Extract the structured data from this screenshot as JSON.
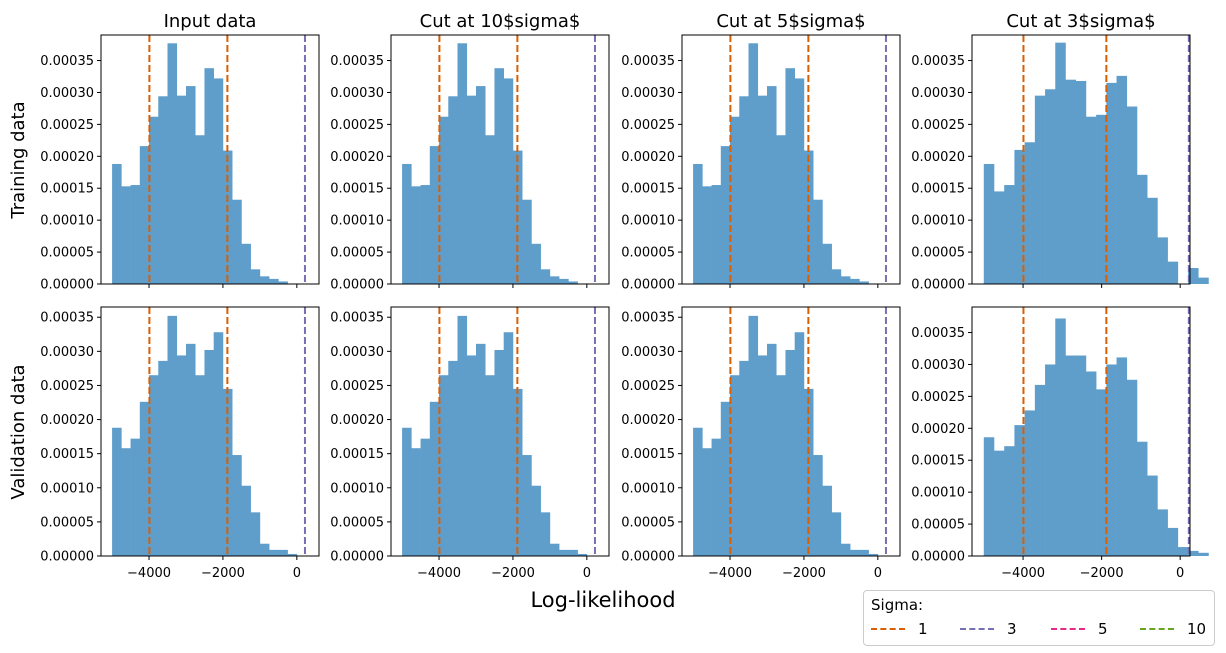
{
  "figure": {
    "xlabel": "Log-likelihood",
    "row_labels": [
      "Training data",
      "Validation data"
    ],
    "column_titles": [
      "Input data",
      "Cut at 10$sigma$",
      "Cut at 5$sigma$",
      "Cut at 3$sigma$"
    ]
  },
  "legend": {
    "title": "Sigma:",
    "items": [
      {
        "label": "1",
        "color": "#d95f02"
      },
      {
        "label": "3",
        "color": "#7570b3"
      },
      {
        "label": "5",
        "color": "#e7298a"
      },
      {
        "label": "10",
        "color": "#66a61e"
      }
    ]
  },
  "colors": {
    "bars": "#5f9ecb",
    "sigma1": "#d95f02",
    "sigma3": "#7570b3"
  },
  "chart_data": [
    {
      "type": "bar",
      "row": "Training data",
      "title": "Input data",
      "xlim": [
        -5300,
        600
      ],
      "ylim": [
        0,
        0.00039
      ],
      "yticks": [
        0,
        5e-05,
        0.0001,
        0.00015,
        0.0002,
        0.00025,
        0.0003,
        0.00035
      ],
      "xticks": [
        -4000,
        -2000,
        0
      ],
      "bin_start": -5000,
      "bin_width": 250,
      "values": [
        0.000188,
        0.000153,
        0.000155,
        0.000216,
        0.000262,
        0.000294,
        0.000377,
        0.000295,
        0.00031,
        0.000233,
        0.000338,
        0.000322,
        0.000209,
        0.000132,
        6.3e-05,
        2.3e-05,
        1.2e-05,
        8e-06,
        4e-06
      ],
      "vlines": [
        {
          "x": -3990,
          "sigma": "1"
        },
        {
          "x": -1880,
          "sigma": "1"
        },
        {
          "x": 220,
          "sigma": "3"
        }
      ]
    },
    {
      "type": "bar",
      "row": "Training data",
      "title": "Cut at 10$sigma$",
      "xlim": [
        -5300,
        600
      ],
      "ylim": [
        0,
        0.00039
      ],
      "yticks": [
        0,
        5e-05,
        0.0001,
        0.00015,
        0.0002,
        0.00025,
        0.0003,
        0.00035
      ],
      "xticks": [
        -4000,
        -2000,
        0
      ],
      "bin_start": -5000,
      "bin_width": 250,
      "values": [
        0.000188,
        0.000153,
        0.000155,
        0.000216,
        0.000262,
        0.000294,
        0.000377,
        0.000295,
        0.00031,
        0.000233,
        0.000338,
        0.000322,
        0.000209,
        0.000132,
        6.3e-05,
        2.3e-05,
        1.2e-05,
        8e-06,
        4e-06
      ],
      "vlines": [
        {
          "x": -3990,
          "sigma": "1"
        },
        {
          "x": -1880,
          "sigma": "1"
        },
        {
          "x": 220,
          "sigma": "3"
        }
      ]
    },
    {
      "type": "bar",
      "row": "Training data",
      "title": "Cut at 5$sigma$",
      "xlim": [
        -5300,
        600
      ],
      "ylim": [
        0,
        0.00039
      ],
      "yticks": [
        0,
        5e-05,
        0.0001,
        0.00015,
        0.0002,
        0.00025,
        0.0003,
        0.00035
      ],
      "xticks": [
        -4000,
        -2000,
        0
      ],
      "bin_start": -5000,
      "bin_width": 250,
      "values": [
        0.000188,
        0.000153,
        0.000155,
        0.000216,
        0.000262,
        0.000294,
        0.000377,
        0.000295,
        0.00031,
        0.000233,
        0.000338,
        0.000322,
        0.000209,
        0.000132,
        6.3e-05,
        2.3e-05,
        1.2e-05,
        8e-06,
        4e-06
      ],
      "vlines": [
        {
          "x": -3990,
          "sigma": "1"
        },
        {
          "x": -1880,
          "sigma": "1"
        },
        {
          "x": 220,
          "sigma": "3"
        }
      ]
    },
    {
      "type": "bar",
      "row": "Training data",
      "title": "Cut at 3$sigma$",
      "xlim": [
        -5300,
        250
      ],
      "ylim": [
        0,
        0.00039
      ],
      "yticks": [
        0,
        5e-05,
        0.0001,
        0.00015,
        0.0002,
        0.00025,
        0.0003,
        0.00035
      ],
      "xticks": [
        -4000,
        -2000,
        0
      ],
      "bin_start": -5000,
      "bin_width": 260,
      "values": [
        0.000188,
        0.000145,
        0.000155,
        0.00021,
        0.000222,
        0.000295,
        0.000305,
        0.000378,
        0.00032,
        0.000318,
        0.000262,
        0.000265,
        0.000315,
        0.000326,
        0.000278,
        0.000171,
        0.000135,
        7.3e-05,
        3.5e-05,
        0.0,
        2.5e-05,
        1e-05
      ],
      "vlines": [
        {
          "x": -3990,
          "sigma": "1"
        },
        {
          "x": -1880,
          "sigma": "1"
        },
        {
          "x": 220,
          "sigma": "3"
        }
      ]
    },
    {
      "type": "bar",
      "row": "Validation data",
      "title": "Input data",
      "xlim": [
        -5300,
        600
      ],
      "ylim": [
        0,
        0.000365
      ],
      "yticks": [
        0,
        5e-05,
        0.0001,
        0.00015,
        0.0002,
        0.00025,
        0.0003,
        0.00035
      ],
      "xticks": [
        -4000,
        -2000,
        0
      ],
      "bin_start": -5000,
      "bin_width": 250,
      "values": [
        0.000188,
        0.000158,
        0.000172,
        0.000226,
        0.000265,
        0.000286,
        0.000352,
        0.000294,
        0.000311,
        0.000265,
        0.000302,
        0.000328,
        0.000245,
        0.000148,
        0.000103,
        6.4e-05,
        1.8e-05,
        9e-06,
        9e-06,
        3e-06
      ],
      "vlines": [
        {
          "x": -3990,
          "sigma": "1"
        },
        {
          "x": -1880,
          "sigma": "1"
        },
        {
          "x": 220,
          "sigma": "3"
        }
      ]
    },
    {
      "type": "bar",
      "row": "Validation data",
      "title": "Cut at 10$sigma$",
      "xlim": [
        -5300,
        600
      ],
      "ylim": [
        0,
        0.000365
      ],
      "yticks": [
        0,
        5e-05,
        0.0001,
        0.00015,
        0.0002,
        0.00025,
        0.0003,
        0.00035
      ],
      "xticks": [
        -4000,
        -2000,
        0
      ],
      "bin_start": -5000,
      "bin_width": 250,
      "values": [
        0.000188,
        0.000158,
        0.000172,
        0.000226,
        0.000265,
        0.000286,
        0.000352,
        0.000294,
        0.000311,
        0.000265,
        0.000302,
        0.000328,
        0.000245,
        0.000148,
        0.000103,
        6.4e-05,
        1.8e-05,
        9e-06,
        9e-06,
        3e-06
      ],
      "vlines": [
        {
          "x": -3990,
          "sigma": "1"
        },
        {
          "x": -1880,
          "sigma": "1"
        },
        {
          "x": 220,
          "sigma": "3"
        }
      ]
    },
    {
      "type": "bar",
      "row": "Validation data",
      "title": "Cut at 5$sigma$",
      "xlim": [
        -5300,
        600
      ],
      "ylim": [
        0,
        0.000365
      ],
      "yticks": [
        0,
        5e-05,
        0.0001,
        0.00015,
        0.0002,
        0.00025,
        0.0003,
        0.00035
      ],
      "xticks": [
        -4000,
        -2000,
        0
      ],
      "bin_start": -5000,
      "bin_width": 250,
      "values": [
        0.000188,
        0.000158,
        0.000172,
        0.000226,
        0.000265,
        0.000286,
        0.000352,
        0.000294,
        0.000311,
        0.000265,
        0.000302,
        0.000328,
        0.000245,
        0.000148,
        0.000103,
        6.4e-05,
        1.8e-05,
        9e-06,
        9e-06,
        3e-06
      ],
      "vlines": [
        {
          "x": -3990,
          "sigma": "1"
        },
        {
          "x": -1880,
          "sigma": "1"
        },
        {
          "x": 220,
          "sigma": "3"
        }
      ]
    },
    {
      "type": "bar",
      "row": "Validation data",
      "title": "Cut at 3$sigma$",
      "xlim": [
        -5300,
        250
      ],
      "ylim": [
        0,
        0.00039
      ],
      "yticks": [
        0,
        5e-05,
        0.0001,
        0.00015,
        0.0002,
        0.00025,
        0.0003,
        0.00035
      ],
      "xticks": [
        -4000,
        -2000,
        0
      ],
      "bin_start": -5000,
      "bin_width": 260,
      "values": [
        0.000186,
        0.000165,
        0.000172,
        0.000205,
        0.000228,
        0.000268,
        0.0003,
        0.000372,
        0.000314,
        0.000314,
        0.000289,
        0.000261,
        0.0003,
        0.000311,
        0.000276,
        0.000179,
        0.000126,
        7.3e-05,
        4.4e-05,
        1.4e-05,
        8e-06,
        5e-06
      ],
      "vlines": [
        {
          "x": -3990,
          "sigma": "1"
        },
        {
          "x": -1880,
          "sigma": "1"
        },
        {
          "x": 220,
          "sigma": "3"
        }
      ]
    }
  ]
}
